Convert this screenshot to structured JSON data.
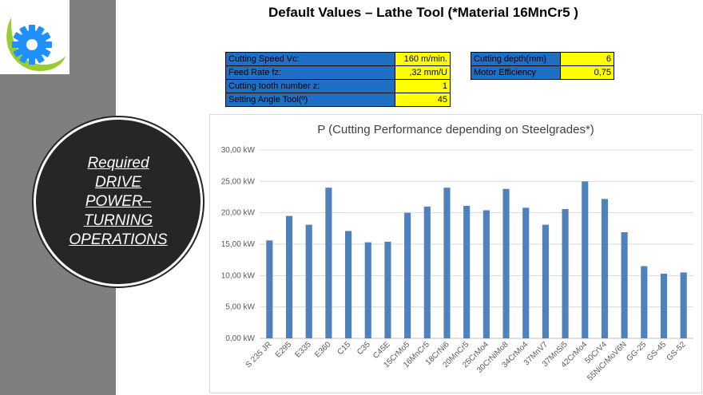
{
  "page": {
    "title": "Default Values – Lathe Tool (*Material 16MnCr5 )",
    "side_label_lines": [
      "Required",
      "DRIVE",
      "POWER–",
      "TURNING",
      "OPERATIONS"
    ]
  },
  "params_left": [
    {
      "label": "Cutting Speed Vc:",
      "value": "160 m/min."
    },
    {
      "label": "Feed Rate fz:",
      "value": ",32 mm/U"
    },
    {
      "label": "Cutting tooth number z:",
      "value": "1"
    },
    {
      "label": "Setting Angle Tool(º)",
      "value": "45"
    }
  ],
  "params_right": [
    {
      "label": "Cutting depth(mm)",
      "value": "6"
    },
    {
      "label": "Motor Efficiency",
      "value": "0,75"
    }
  ],
  "colors": {
    "bar": "#4f81bd",
    "param_label_bg": "#1f6fc5",
    "param_value_bg": "#ffff00",
    "sidebar": "#7f7f7f",
    "circle": "#262626"
  },
  "chart_data": {
    "type": "bar",
    "title": "P (Cutting Performance depending on Steelgrades*)",
    "categories": [
      "S 235 JR",
      "E295",
      "E335",
      "E360",
      "C15",
      "C35",
      "C45E",
      "15CrMo5",
      "16MnCr5",
      "18CrNi6",
      "20MnCr5",
      "25CrMo4",
      "30CrNiMo8",
      "34CrMo4",
      "37MnV7",
      "37MnSi5",
      "42CrMo4",
      "50CrV4",
      "55NiCrMoV6N",
      "GG-25",
      "GS-45",
      "GS-52"
    ],
    "values": [
      15.6,
      19.5,
      18.1,
      24.0,
      17.1,
      15.3,
      15.4,
      20.0,
      21.0,
      24.0,
      21.1,
      20.4,
      23.8,
      20.8,
      18.1,
      20.6,
      25.0,
      22.2,
      16.9,
      11.5,
      10.3,
      10.5
    ],
    "yticks": [
      "0,00 kW",
      "5,00 kW",
      "10,00 kW",
      "15,00 kW",
      "20,00 kW",
      "25,00 kW",
      "30,00 kW"
    ],
    "ylim": [
      0,
      30
    ],
    "grid": true,
    "legend": "none"
  }
}
